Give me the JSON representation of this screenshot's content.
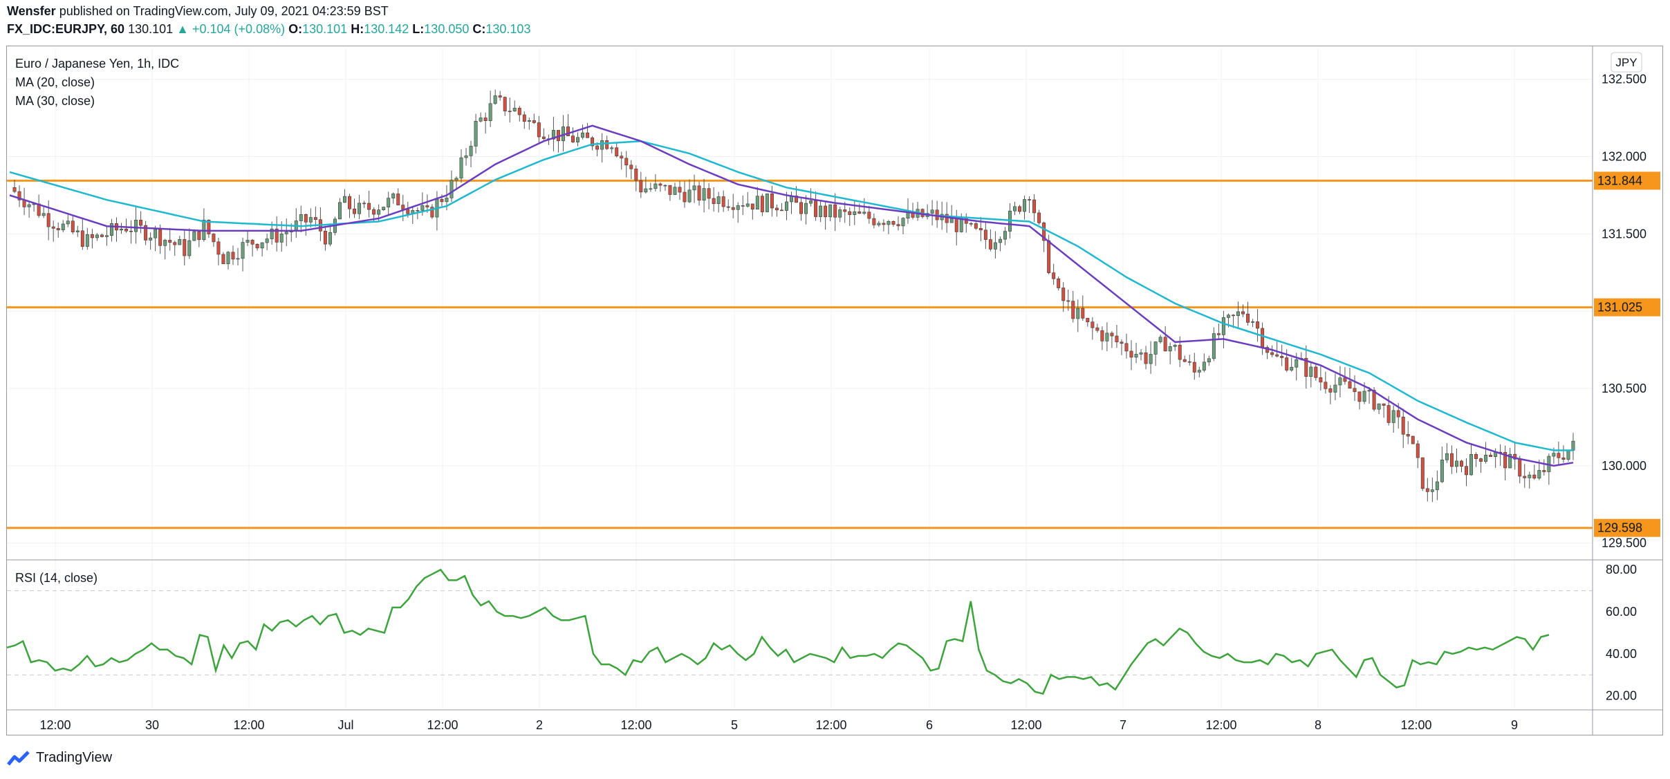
{
  "header": {
    "author": "Wensfer",
    "published_text": "published on TradingView.com, July 09, 2021 04:23:59 BST"
  },
  "quote": {
    "symbol": "FX_IDC:EURJPY, 60",
    "last": "130.101",
    "change": "▲ +0.104 (+0.08%)",
    "open_label": "O:",
    "open": "130.101",
    "high_label": "H:",
    "high": "130.142",
    "low_label": "L:",
    "low": "130.050",
    "close_label": "C:",
    "close": "130.103"
  },
  "legend": {
    "main_title": "Euro / Japanese Yen, 1h, IDC",
    "ma20": "MA (20, close)",
    "ma30": "MA (30, close)",
    "rsi": "RSI (14, close)"
  },
  "currency_badge": "JPY",
  "brand": {
    "name": "TradingView",
    "icon": "tradingview-logo-icon"
  },
  "colors": {
    "up": "#6b9e7b",
    "down": "#d1503f",
    "ma20": "#6a3cc0",
    "ma30": "#1eb8d1",
    "level": "#f6961c",
    "rsi": "#3da33c",
    "grid": "#eef0f3"
  },
  "chart_data": [
    {
      "type": "candlestick",
      "title": "Euro / Japanese Yen, 1h, IDC",
      "ylim": [
        129.4,
        132.7
      ],
      "y_ticks": [
        "132.500",
        "132.000",
        "131.500",
        "130.500",
        "130.000",
        "129.500"
      ],
      "x_ticks": [
        "12:00",
        "30",
        "12:00",
        "Jul",
        "12:00",
        "2",
        "12:00",
        "5",
        "12:00",
        "6",
        "12:00",
        "7",
        "12:00",
        "8",
        "12:00",
        "9"
      ],
      "horizontal_levels": [
        {
          "label": "131.844",
          "value": 131.844
        },
        {
          "label": "131.025",
          "value": 131.025
        },
        {
          "label": "129.598",
          "value": 129.598
        }
      ],
      "close_path": [
        [
          0,
          131.8
        ],
        [
          8,
          131.6
        ],
        [
          16,
          131.45
        ],
        [
          24,
          131.55
        ],
        [
          30,
          131.5
        ],
        [
          36,
          131.4
        ],
        [
          40,
          131.55
        ],
        [
          44,
          131.35
        ],
        [
          50,
          131.45
        ],
        [
          56,
          131.5
        ],
        [
          62,
          131.6
        ],
        [
          66,
          131.45
        ],
        [
          68,
          131.7
        ],
        [
          72,
          131.65
        ],
        [
          80,
          131.72
        ],
        [
          86,
          131.62
        ],
        [
          92,
          131.85
        ],
        [
          96,
          132.2
        ],
        [
          100,
          132.35
        ],
        [
          104,
          132.3
        ],
        [
          108,
          132.2
        ],
        [
          112,
          132.15
        ],
        [
          118,
          132.1
        ],
        [
          124,
          132.1
        ],
        [
          130,
          131.8
        ],
        [
          136,
          131.78
        ],
        [
          142,
          131.75
        ],
        [
          148,
          131.72
        ],
        [
          154,
          131.7
        ],
        [
          160,
          131.7
        ],
        [
          166,
          131.65
        ],
        [
          172,
          131.62
        ],
        [
          178,
          131.6
        ],
        [
          184,
          131.6
        ],
        [
          190,
          131.62
        ],
        [
          196,
          131.55
        ],
        [
          202,
          131.45
        ],
        [
          206,
          131.6
        ],
        [
          210,
          131.78
        ],
        [
          213,
          131.4
        ],
        [
          216,
          131.1
        ],
        [
          222,
          130.9
        ],
        [
          228,
          130.8
        ],
        [
          234,
          130.7
        ],
        [
          238,
          130.8
        ],
        [
          240,
          130.75
        ],
        [
          244,
          130.6
        ],
        [
          250,
          130.9
        ],
        [
          254,
          131.0
        ],
        [
          256,
          130.95
        ],
        [
          260,
          130.7
        ],
        [
          266,
          130.65
        ],
        [
          270,
          130.55
        ],
        [
          276,
          130.5
        ],
        [
          282,
          130.4
        ],
        [
          288,
          130.2
        ],
        [
          292,
          129.8
        ],
        [
          296,
          130.05
        ],
        [
          300,
          130.0
        ],
        [
          304,
          130.1
        ],
        [
          310,
          130.0
        ],
        [
          314,
          129.9
        ],
        [
          318,
          130.05
        ],
        [
          322,
          130.12
        ]
      ],
      "ma20_path": [
        [
          0,
          131.75
        ],
        [
          20,
          131.55
        ],
        [
          40,
          131.52
        ],
        [
          60,
          131.52
        ],
        [
          76,
          131.6
        ],
        [
          90,
          131.75
        ],
        [
          100,
          131.95
        ],
        [
          110,
          132.1
        ],
        [
          120,
          132.2
        ],
        [
          130,
          132.1
        ],
        [
          140,
          131.95
        ],
        [
          150,
          131.82
        ],
        [
          160,
          131.75
        ],
        [
          170,
          131.7
        ],
        [
          180,
          131.66
        ],
        [
          190,
          131.62
        ],
        [
          200,
          131.58
        ],
        [
          210,
          131.55
        ],
        [
          220,
          131.3
        ],
        [
          230,
          131.05
        ],
        [
          240,
          130.8
        ],
        [
          250,
          130.82
        ],
        [
          260,
          130.75
        ],
        [
          270,
          130.65
        ],
        [
          280,
          130.5
        ],
        [
          290,
          130.3
        ],
        [
          300,
          130.15
        ],
        [
          310,
          130.05
        ],
        [
          318,
          130.0
        ],
        [
          322,
          130.02
        ]
      ],
      "ma30_path": [
        [
          0,
          131.9
        ],
        [
          20,
          131.72
        ],
        [
          40,
          131.58
        ],
        [
          60,
          131.55
        ],
        [
          76,
          131.58
        ],
        [
          90,
          131.68
        ],
        [
          100,
          131.85
        ],
        [
          110,
          131.98
        ],
        [
          120,
          132.08
        ],
        [
          130,
          132.1
        ],
        [
          140,
          132.02
        ],
        [
          150,
          131.9
        ],
        [
          160,
          131.8
        ],
        [
          170,
          131.74
        ],
        [
          180,
          131.68
        ],
        [
          190,
          131.62
        ],
        [
          200,
          131.6
        ],
        [
          210,
          131.58
        ],
        [
          220,
          131.42
        ],
        [
          230,
          131.22
        ],
        [
          240,
          131.05
        ],
        [
          250,
          130.92
        ],
        [
          260,
          130.82
        ],
        [
          270,
          130.72
        ],
        [
          280,
          130.6
        ],
        [
          290,
          130.42
        ],
        [
          300,
          130.28
        ],
        [
          310,
          130.15
        ],
        [
          318,
          130.1
        ],
        [
          322,
          130.1
        ]
      ]
    },
    {
      "type": "line",
      "title": "RSI (14, close)",
      "ylim": [
        14,
        84
      ],
      "y_ticks": [
        "80.00",
        "60.00",
        "40.00",
        "20.00"
      ],
      "bands": [
        70,
        30
      ],
      "series": [
        {
          "name": "RSI (14, close)",
          "values": [
            43,
            44,
            46,
            36,
            37,
            36,
            32,
            33,
            32,
            35,
            39,
            34,
            35,
            38,
            36,
            37,
            40,
            42,
            45,
            42,
            42,
            39,
            38,
            35,
            49,
            48,
            32,
            44,
            38,
            45,
            46,
            42,
            54,
            51,
            55,
            56,
            53,
            56,
            58,
            54,
            58,
            59,
            50,
            51,
            49,
            52,
            51,
            50,
            62,
            62,
            66,
            72,
            76,
            78,
            80,
            75,
            75,
            77,
            68,
            63,
            65,
            60,
            58,
            58,
            57,
            58,
            60,
            62,
            58,
            56,
            56,
            57,
            58,
            40,
            35,
            35,
            33,
            30,
            37,
            36,
            41,
            43,
            36,
            38,
            40,
            38,
            35,
            38,
            45,
            42,
            44,
            40,
            37,
            40,
            48,
            43,
            39,
            42,
            36,
            38,
            40,
            39,
            38,
            36,
            43,
            38,
            39,
            39,
            40,
            38,
            42,
            45,
            44,
            41,
            38,
            32,
            33,
            46,
            47,
            46,
            65,
            42,
            32,
            30,
            27,
            26,
            28,
            26,
            22,
            21,
            30,
            28,
            29,
            29,
            28,
            29,
            25,
            26,
            23,
            29,
            35,
            40,
            45,
            47,
            44,
            48,
            52,
            50,
            45,
            41,
            39,
            38,
            40,
            37,
            36,
            36,
            37,
            35,
            40,
            39,
            36,
            37,
            34,
            40,
            41,
            42,
            37,
            33,
            29,
            37,
            38,
            30,
            27,
            24,
            25,
            37,
            35,
            36,
            35,
            41,
            40,
            41,
            43,
            42,
            43,
            42,
            44,
            46,
            48,
            47,
            42,
            48,
            49
          ]
        }
      ]
    }
  ]
}
